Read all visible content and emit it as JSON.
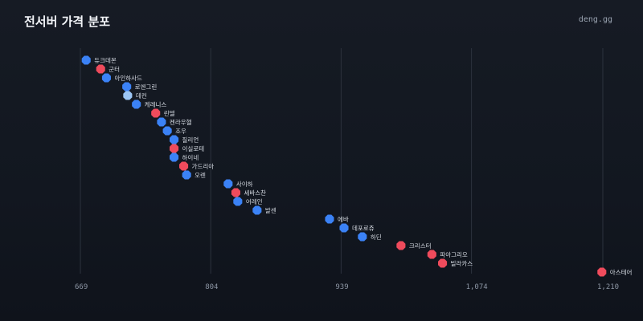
{
  "header": {
    "title": "전서버 가격 분포",
    "brand": "deng.gg"
  },
  "colors": {
    "blue": "#3b82f6",
    "red": "#ef4b5c",
    "light_blue": "#9cc6f5",
    "grid": "#2c323d"
  },
  "chart_data": {
    "type": "scatter",
    "xlim": [
      669,
      1210
    ],
    "xticks": [
      669,
      804,
      939,
      1074,
      1210
    ],
    "xtick_labels": [
      "669",
      "804",
      "939",
      "1,074",
      "1,210"
    ],
    "grid": true,
    "points": [
      {
        "label": "듀크데몬",
        "x": 675,
        "color": "blue"
      },
      {
        "label": "군터",
        "x": 690,
        "color": "red"
      },
      {
        "label": "아인하사드",
        "x": 696,
        "color": "blue"
      },
      {
        "label": "로엔그린",
        "x": 717,
        "color": "blue"
      },
      {
        "label": "데컨",
        "x": 718,
        "color": "light_blue"
      },
      {
        "label": "케레니스",
        "x": 727,
        "color": "blue"
      },
      {
        "label": "린델",
        "x": 747,
        "color": "red"
      },
      {
        "label": "켄라우헬",
        "x": 753,
        "color": "blue"
      },
      {
        "label": "조우",
        "x": 759,
        "color": "blue"
      },
      {
        "label": "질리언",
        "x": 766,
        "color": "blue"
      },
      {
        "label": "이실로테",
        "x": 766,
        "color": "red"
      },
      {
        "label": "하이네",
        "x": 766,
        "color": "blue"
      },
      {
        "label": "가드리아",
        "x": 776,
        "color": "red"
      },
      {
        "label": "오렌",
        "x": 779,
        "color": "blue"
      },
      {
        "label": "사이하",
        "x": 822,
        "color": "blue"
      },
      {
        "label": "세바스찬",
        "x": 830,
        "color": "red"
      },
      {
        "label": "어레인",
        "x": 832,
        "color": "blue"
      },
      {
        "label": "발센",
        "x": 852,
        "color": "blue"
      },
      {
        "label": "에바",
        "x": 927,
        "color": "blue"
      },
      {
        "label": "데포로쥬",
        "x": 942,
        "color": "blue"
      },
      {
        "label": "하딘",
        "x": 961,
        "color": "blue"
      },
      {
        "label": "크리스터",
        "x": 1001,
        "color": "red"
      },
      {
        "label": "파아그리오",
        "x": 1033,
        "color": "red"
      },
      {
        "label": "빌라카스",
        "x": 1044,
        "color": "red"
      },
      {
        "label": "아스테어",
        "x": 1209,
        "color": "red"
      }
    ]
  }
}
